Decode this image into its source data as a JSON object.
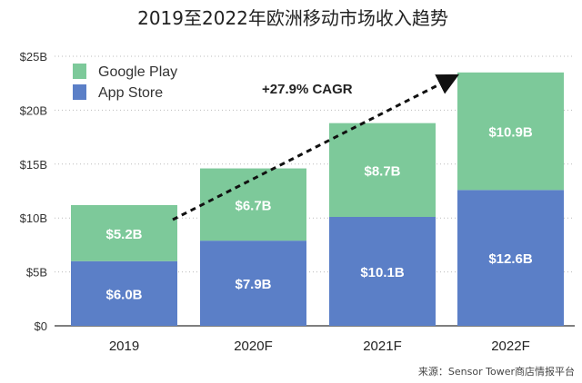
{
  "chart_data": {
    "type": "bar",
    "stacked": true,
    "title": "2019至2022年欧洲移动市场收入趋势",
    "categories": [
      "2019",
      "2020F",
      "2021F",
      "2022F"
    ],
    "series": [
      {
        "name": "App Store",
        "values": [
          6.0,
          7.9,
          10.1,
          12.6
        ],
        "labels": [
          "$6.0B",
          "$7.9B",
          "$10.1B",
          "$12.6B"
        ],
        "color": "#5b7fc7"
      },
      {
        "name": "Google Play",
        "values": [
          5.2,
          6.7,
          8.7,
          10.9
        ],
        "labels": [
          "$5.2B",
          "$6.7B",
          "$8.7B",
          "$10.9B"
        ],
        "color": "#7dc99a"
      }
    ],
    "ylim": [
      0,
      25
    ],
    "yticks": [
      "$0",
      "$5B",
      "$10B",
      "$15B",
      "$20B",
      "$25B"
    ],
    "ytick_values": [
      0,
      5,
      10,
      15,
      20,
      25
    ],
    "grid": true,
    "legend": "top-left",
    "annotation": "+27.9% CAGR",
    "source": "来源：Sensor Tower商店情报平台"
  }
}
